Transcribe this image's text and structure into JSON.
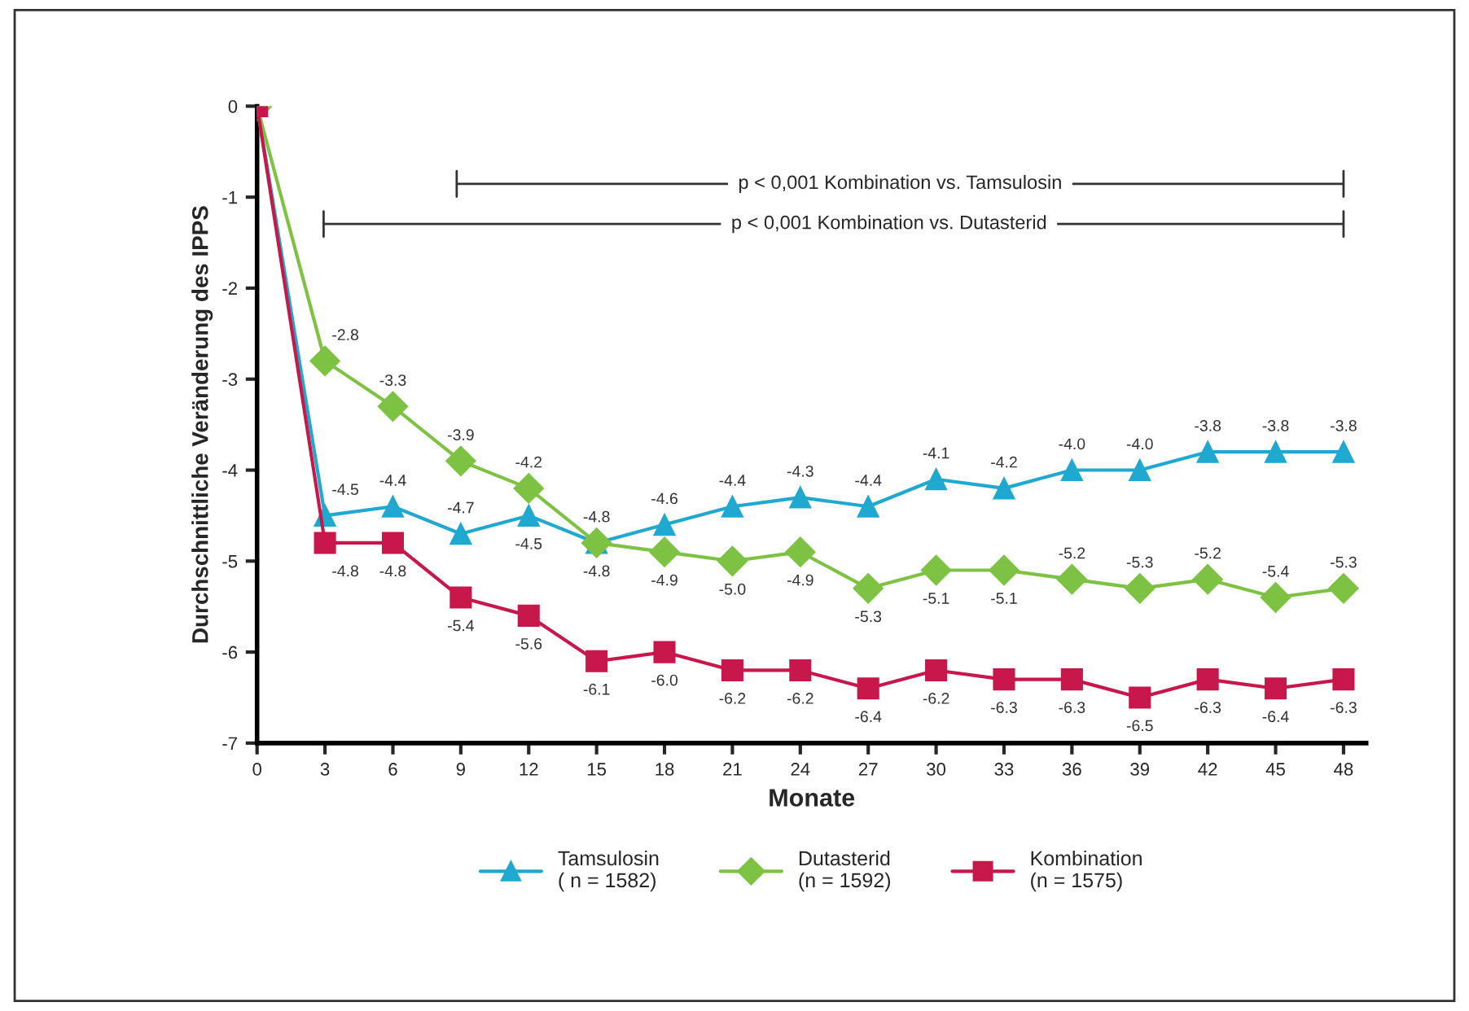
{
  "chart_data": {
    "type": "line",
    "xlabel": "Monate",
    "ylabel": "Durchschnittliche Veränderung des IPPS",
    "x": [
      0,
      3,
      6,
      9,
      12,
      15,
      18,
      21,
      24,
      27,
      30,
      33,
      36,
      39,
      42,
      45,
      48
    ],
    "xlim": [
      0,
      49
    ],
    "xticks": [
      0,
      3,
      6,
      9,
      12,
      15,
      18,
      21,
      24,
      27,
      30,
      33,
      36,
      39,
      42,
      45,
      48
    ],
    "ylim": [
      -7,
      0
    ],
    "yticks": [
      -7,
      -6,
      -5,
      -4,
      -3,
      -2,
      -1,
      0
    ],
    "grid": false,
    "legend": "bottom",
    "annotations": [
      "p < 0,001 Kombination vs. Tamsulosin",
      "p < 0,001 Kombination vs. Dutasterid"
    ],
    "series": [
      {
        "name": "Tamsulosin\n( n = 1582)",
        "color": "#1fa8d0",
        "marker": "triangle",
        "values": [
          0,
          -4.5,
          -4.4,
          -4.7,
          -4.5,
          -4.8,
          -4.6,
          -4.4,
          -4.3,
          -4.4,
          -4.1,
          -4.2,
          -4.0,
          -4.0,
          -3.8,
          -3.8,
          -3.8
        ],
        "value_labels": [
          null,
          "-4.5",
          "-4.4",
          "-4.7",
          "-4.5",
          "-4.8",
          "-4.6",
          "-4.4",
          "-4.3",
          "-4.4",
          "-4.1",
          "-4.2",
          "-4.0",
          "-4.0",
          "-3.8",
          "-3.8",
          "-3.8"
        ]
      },
      {
        "name": "Dutasterid\n(n = 1592)",
        "color": "#7dc242",
        "marker": "diamond",
        "values": [
          0,
          -2.8,
          -3.3,
          -3.9,
          -4.2,
          -4.8,
          -4.9,
          -5.0,
          -4.9,
          -5.3,
          -5.1,
          -5.1,
          -5.2,
          -5.3,
          -5.2,
          -5.4,
          -5.3
        ],
        "value_labels": [
          null,
          "-2.8",
          "-3.3",
          "-3.9",
          "-4.2",
          "-4.8",
          "-4.9",
          "-5.0",
          "-4.9",
          "-5.3",
          "-5.1",
          "-5.1",
          "-5.2",
          "-5.3",
          "-5.2",
          "-5.4",
          "-5.3"
        ]
      },
      {
        "name": "Kombination\n(n = 1575)",
        "color": "#c8174a",
        "marker": "square",
        "values": [
          0,
          -4.8,
          -4.8,
          -5.4,
          -5.6,
          -6.1,
          -6.0,
          -6.2,
          -6.2,
          -6.4,
          -6.2,
          -6.3,
          -6.3,
          -6.5,
          -6.3,
          -6.4,
          -6.3
        ],
        "value_labels": [
          null,
          "-4.8",
          "-4.8",
          "-5.4",
          "-5.6",
          "-6.1",
          "-6.0",
          "-6.2",
          "-6.2",
          "-6.4",
          "-6.2",
          "-6.3",
          "-6.3",
          "-6.5",
          "-6.3",
          "-6.4",
          "-6.3"
        ]
      }
    ]
  }
}
